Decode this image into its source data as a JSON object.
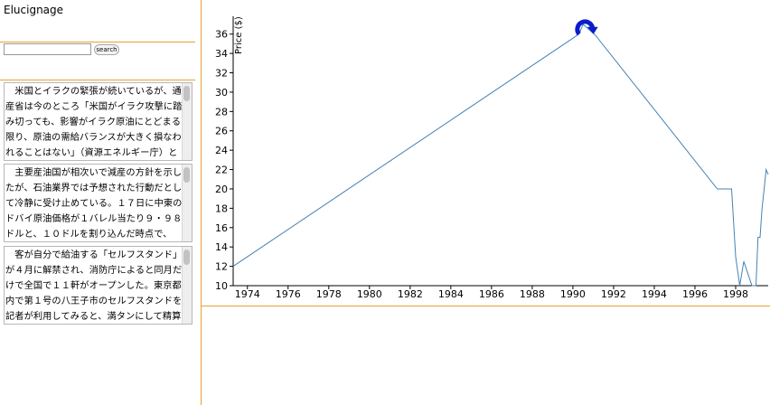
{
  "app": {
    "title": "Elucignage"
  },
  "search": {
    "placeholder": "",
    "value": "",
    "button_label": "search"
  },
  "articles": [
    {
      "text": "　米国とイラクの緊張が続いているが、通産省は今のところ「米国がイラク攻撃に踏み切っても、影響がイラク原油にとどまる限り、原油の需給バランスが大きく損なわれることはない」（資源エネルギー庁）と静観の構えだ。ただ、原油価"
    },
    {
      "text": "　主要産油国が相次いで減産の方針を示したが、石油業界では予想された行動だとして冷静に受け止めている。１７日に中東のドバイ原油価格が１バレル当たり９・９８ドルと、１０ドルを割り込んだ時点で、「ＯＰＥＣ各国が減産するな"
    },
    {
      "text": "　客が自分で給油する「セルフスタンド」が４月に解禁され、消防庁によると同月だけで全国で１１軒がオープンした。東京都内で第１号の八王子市のセルフスタンドを記者が利用してみると、満タンにして精算するまでにかかった時間"
    }
  ],
  "chart_data": {
    "type": "line",
    "title": "",
    "xlabel": "",
    "ylabel": "Price ($)",
    "xlim": [
      1973.3,
      1999.6
    ],
    "ylim": [
      10,
      37
    ],
    "x_ticks": [
      "1974",
      "1976",
      "1978",
      "1980",
      "1982",
      "1984",
      "1986",
      "1988",
      "1990",
      "1992",
      "1994",
      "1996",
      "1998"
    ],
    "y_ticks": [
      "10",
      "12",
      "14",
      "16",
      "18",
      "20",
      "22",
      "24",
      "26",
      "28",
      "30",
      "32",
      "34",
      "36"
    ],
    "grid": false,
    "series": [
      {
        "name": "",
        "color": "#4682b4",
        "x": [
          1973.3,
          1990.3,
          1990.5,
          1991.1,
          1997.1,
          1997.8,
          1998.0,
          1998.2,
          1998.4,
          1998.8,
          1999.0,
          1999.1,
          1999.2,
          1999.3,
          1999.4,
          1999.5,
          1999.6
        ],
        "y": [
          12.0,
          36.0,
          37.0,
          35.9,
          20.0,
          20.0,
          13.0,
          10.0,
          12.5,
          10.0,
          10.0,
          15.0,
          15.0,
          18.0,
          20.0,
          22.0,
          21.5
        ]
      }
    ],
    "annotation": {
      "icon": "clockwise-arrow-icon",
      "color": "#0a1ccc",
      "x": 1990.3,
      "y": 36
    }
  }
}
